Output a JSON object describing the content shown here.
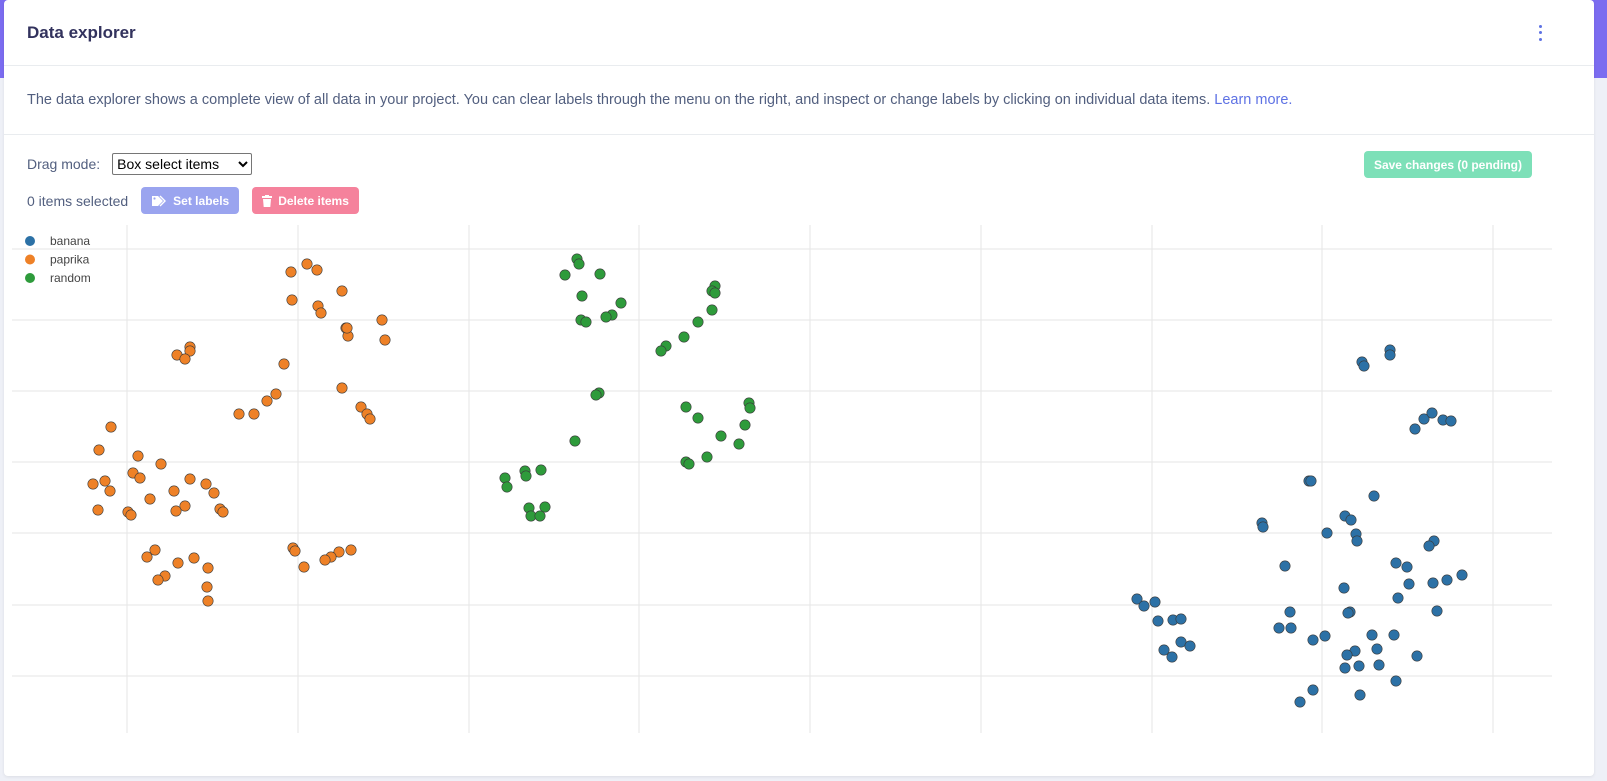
{
  "header": {
    "title": "Data explorer"
  },
  "description": {
    "text": "The data explorer shows a complete view of all data in your project. You can clear labels through the menu on the right, and inspect or change labels by clicking on individual data items.",
    "link": "Learn more."
  },
  "controls": {
    "drag_mode_label": "Drag mode:",
    "drag_mode_value": "Box select items",
    "selected_count": "0 items selected",
    "set_labels": "Set labels",
    "delete_items": "Delete items",
    "save_changes": "Save changes (0 pending)"
  },
  "colors": {
    "banana": "#2c71a6",
    "paprika": "#ee8127",
    "random": "#2e9b3b",
    "accent": "#5e72e4"
  },
  "chart_data": {
    "type": "scatter",
    "legend": "top-left",
    "grid": true,
    "series": [
      {
        "name": "banana",
        "color": "#2c71a6",
        "points": [
          [
            1362,
            362
          ],
          [
            1364,
            366
          ],
          [
            1390,
            350
          ],
          [
            1390,
            355
          ],
          [
            1415,
            429
          ],
          [
            1424,
            419
          ],
          [
            1432,
            413
          ],
          [
            1443,
            420
          ],
          [
            1451,
            421
          ],
          [
            1309,
            481
          ],
          [
            1311,
            481
          ],
          [
            1374,
            496
          ],
          [
            1262,
            523
          ],
          [
            1263,
            527
          ],
          [
            1345,
            516
          ],
          [
            1351,
            520
          ],
          [
            1327,
            533
          ],
          [
            1356,
            534
          ],
          [
            1357,
            541
          ],
          [
            1434,
            541
          ],
          [
            1429,
            546
          ],
          [
            1285,
            566
          ],
          [
            1396,
            563
          ],
          [
            1407,
            567
          ],
          [
            1462,
            575
          ],
          [
            1447,
            580
          ],
          [
            1433,
            583
          ],
          [
            1409,
            584
          ],
          [
            1344,
            588
          ],
          [
            1398,
            598
          ],
          [
            1290,
            612
          ],
          [
            1350,
            612
          ],
          [
            1348,
            613
          ],
          [
            1437,
            611
          ],
          [
            1279,
            628
          ],
          [
            1291,
            628
          ],
          [
            1325,
            636
          ],
          [
            1313,
            640
          ],
          [
            1372,
            635
          ],
          [
            1394,
            635
          ],
          [
            1355,
            651
          ],
          [
            1347,
            655
          ],
          [
            1377,
            649
          ],
          [
            1417,
            656
          ],
          [
            1359,
            666
          ],
          [
            1345,
            668
          ],
          [
            1379,
            665
          ],
          [
            1396,
            681
          ],
          [
            1313,
            690
          ],
          [
            1300,
            702
          ],
          [
            1360,
            695
          ],
          [
            1137,
            599
          ],
          [
            1144,
            606
          ],
          [
            1155,
            602
          ],
          [
            1158,
            621
          ],
          [
            1173,
            620
          ],
          [
            1181,
            619
          ],
          [
            1164,
            650
          ],
          [
            1172,
            657
          ],
          [
            1181,
            642
          ],
          [
            1190,
            646
          ]
        ]
      },
      {
        "name": "paprika",
        "color": "#ee8127",
        "points": [
          [
            291,
            272
          ],
          [
            307,
            264
          ],
          [
            317,
            270
          ],
          [
            342,
            291
          ],
          [
            292,
            300
          ],
          [
            318,
            306
          ],
          [
            321,
            313
          ],
          [
            346,
            328
          ],
          [
            348,
            336
          ],
          [
            347,
            328
          ],
          [
            382,
            320
          ],
          [
            385,
            340
          ],
          [
            190,
            347
          ],
          [
            190,
            351
          ],
          [
            177,
            355
          ],
          [
            185,
            359
          ],
          [
            284,
            364
          ],
          [
            342,
            388
          ],
          [
            276,
            394
          ],
          [
            267,
            401
          ],
          [
            239,
            414
          ],
          [
            254,
            414
          ],
          [
            361,
            407
          ],
          [
            367,
            414
          ],
          [
            370,
            419
          ],
          [
            111,
            427
          ],
          [
            99,
            450
          ],
          [
            138,
            456
          ],
          [
            161,
            464
          ],
          [
            133,
            473
          ],
          [
            140,
            478
          ],
          [
            105,
            481
          ],
          [
            93,
            484
          ],
          [
            190,
            479
          ],
          [
            206,
            484
          ],
          [
            110,
            491
          ],
          [
            174,
            491
          ],
          [
            150,
            499
          ],
          [
            214,
            493
          ],
          [
            185,
            506
          ],
          [
            98,
            510
          ],
          [
            128,
            512
          ],
          [
            131,
            515
          ],
          [
            176,
            511
          ],
          [
            220,
            509
          ],
          [
            223,
            512
          ],
          [
            155,
            550
          ],
          [
            147,
            557
          ],
          [
            178,
            563
          ],
          [
            194,
            558
          ],
          [
            165,
            576
          ],
          [
            158,
            580
          ],
          [
            208,
            568
          ],
          [
            207,
            587
          ],
          [
            208,
            601
          ],
          [
            293,
            548
          ],
          [
            295,
            551
          ],
          [
            339,
            552
          ],
          [
            351,
            550
          ],
          [
            331,
            557
          ],
          [
            325,
            560
          ],
          [
            304,
            567
          ]
        ]
      },
      {
        "name": "random",
        "color": "#2e9b3b",
        "points": [
          [
            577,
            259
          ],
          [
            579,
            264
          ],
          [
            565,
            275
          ],
          [
            600,
            274
          ],
          [
            715,
            286
          ],
          [
            712,
            291
          ],
          [
            715,
            293
          ],
          [
            582,
            296
          ],
          [
            621,
            303
          ],
          [
            612,
            315
          ],
          [
            606,
            317
          ],
          [
            581,
            320
          ],
          [
            586,
            322
          ],
          [
            712,
            310
          ],
          [
            698,
            322
          ],
          [
            684,
            337
          ],
          [
            666,
            346
          ],
          [
            661,
            351
          ],
          [
            599,
            393
          ],
          [
            596,
            395
          ],
          [
            686,
            407
          ],
          [
            749,
            403
          ],
          [
            750,
            408
          ],
          [
            698,
            418
          ],
          [
            745,
            425
          ],
          [
            721,
            436
          ],
          [
            739,
            444
          ],
          [
            575,
            441
          ],
          [
            707,
            457
          ],
          [
            686,
            462
          ],
          [
            689,
            464
          ],
          [
            525,
            471
          ],
          [
            541,
            470
          ],
          [
            526,
            476
          ],
          [
            505,
            478
          ],
          [
            507,
            487
          ],
          [
            529,
            508
          ],
          [
            545,
            507
          ],
          [
            531,
            516
          ],
          [
            540,
            516
          ]
        ]
      }
    ]
  }
}
